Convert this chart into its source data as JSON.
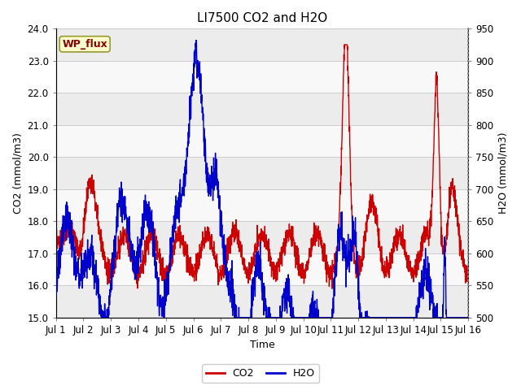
{
  "title": "LI7500 CO2 and H2O",
  "xlabel": "Time",
  "ylabel_left": "CO2 (mmol/m3)",
  "ylabel_right": "H2O (mmol/m3)",
  "ylim_left": [
    15.0,
    24.0
  ],
  "ylim_right": [
    500,
    950
  ],
  "xtick_labels": [
    "Jul 1",
    "Jul 2",
    "Jul 3",
    "Jul 4",
    "Jul 5",
    "Jul 6",
    "Jul 7",
    "Jul 8",
    "Jul 9",
    "Jul 10",
    "Jul 11",
    "Jul 12",
    "Jul 13",
    "Jul 14",
    "Jul 15",
    "Jul 16"
  ],
  "yticks_left": [
    15.0,
    16.0,
    17.0,
    18.0,
    19.0,
    20.0,
    21.0,
    22.0,
    23.0,
    24.0
  ],
  "yticks_right": [
    500,
    550,
    600,
    650,
    700,
    750,
    800,
    850,
    900,
    950
  ],
  "co2_color": "#cc0000",
  "h2o_color": "#0000cc",
  "band_light": "#ececec",
  "band_dark": "#f8f8f8",
  "hline_color": "#cccccc",
  "legend_box_facecolor": "#ffffcc",
  "legend_box_edgecolor": "#999933",
  "wp_flux_text_color": "#880000",
  "title_fontsize": 11,
  "axis_label_fontsize": 9,
  "tick_fontsize": 8.5,
  "legend_fontsize": 9
}
